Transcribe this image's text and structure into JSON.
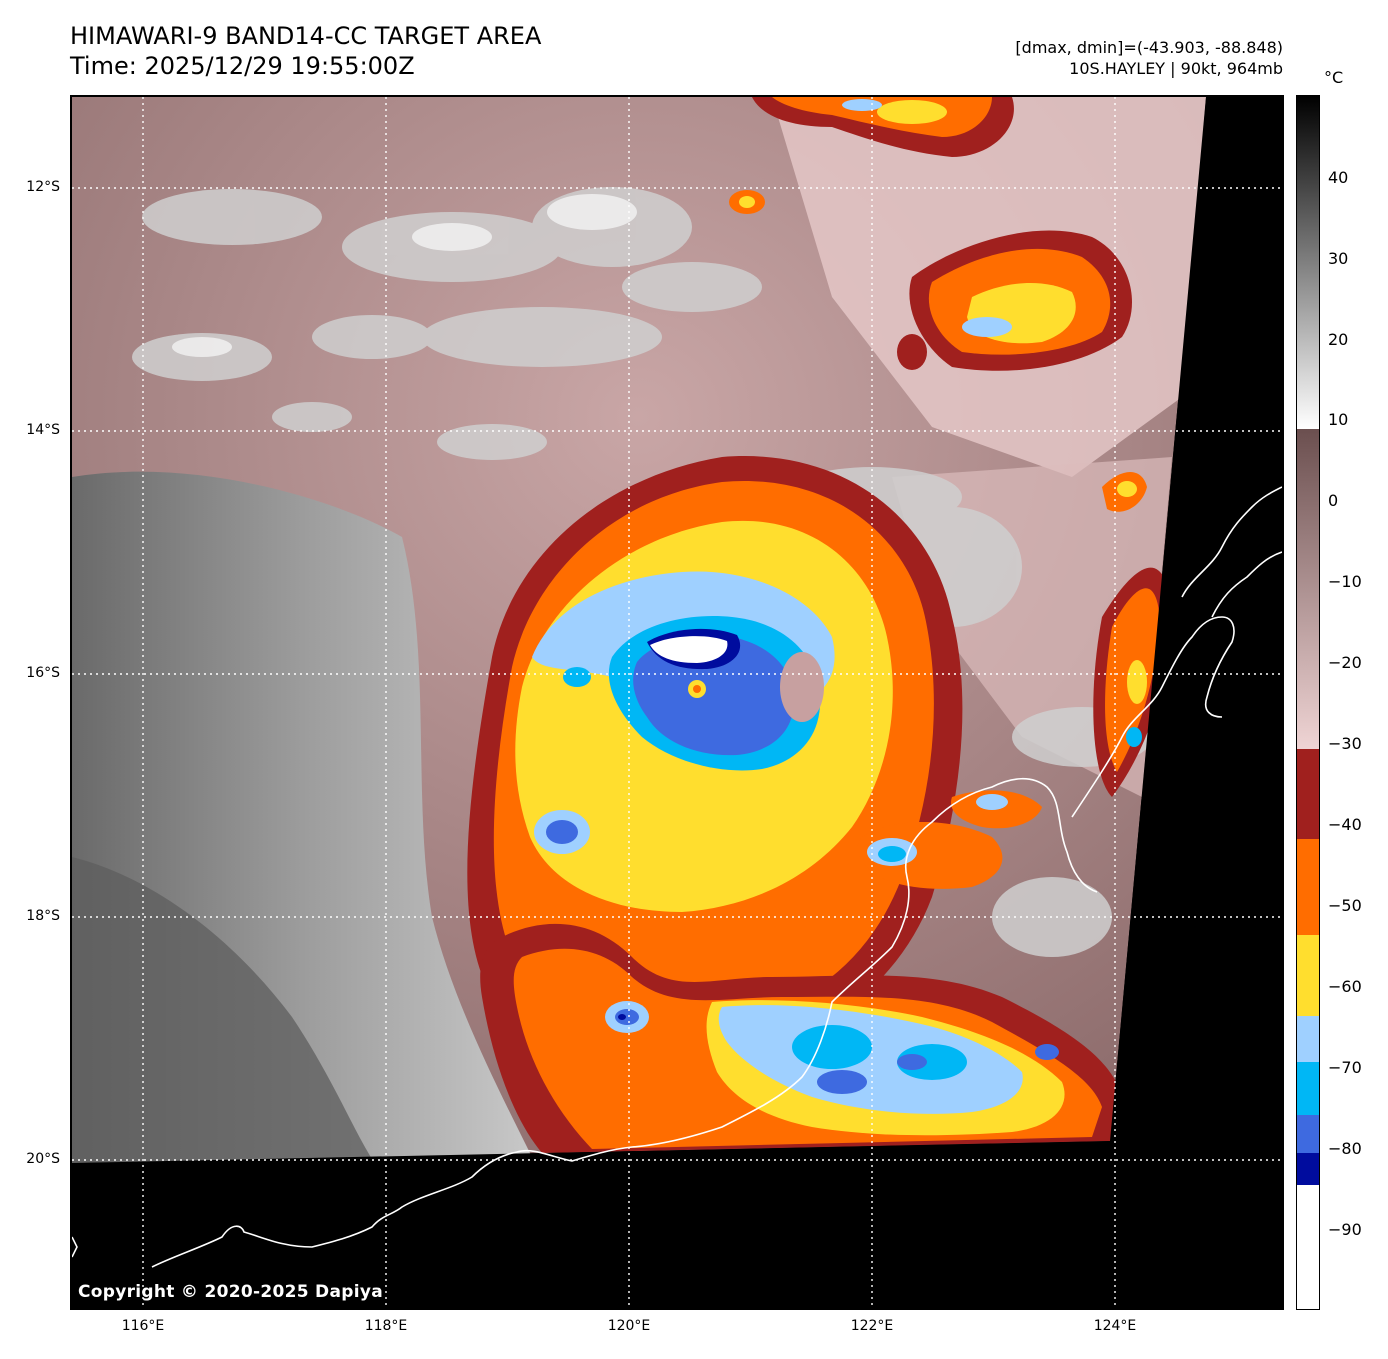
{
  "header": {
    "title_line1": "HIMAWARI-9 BAND14-CC TARGET AREA",
    "title_line2": "Time: 2025/12/29 19:55:00Z",
    "info_line1": "[dmax, dmin]=(-43.903, -88.848)",
    "info_line2": "10S.HAYLEY | 90kt, 964mb"
  },
  "axes": {
    "lat_labels": [
      "12°S",
      "14°S",
      "16°S",
      "18°S",
      "20°S"
    ],
    "lon_labels": [
      "116°E",
      "118°E",
      "120°E",
      "122°E",
      "124°E"
    ]
  },
  "colorbar": {
    "unit": "°C",
    "ticks": [
      "40",
      "30",
      "20",
      "10",
      "0",
      "−10",
      "−20",
      "−30",
      "−40",
      "−50",
      "−60",
      "−70",
      "−80",
      "−90"
    ],
    "colors": {
      "gray_top": "#000000",
      "gray_bottom": "#ffffff",
      "pink_top": "#6b4f4f",
      "pink_bottom": "#efd4d4",
      "dark_red": "#a0201e",
      "orange": "#ff6d00",
      "yellow": "#ffde2e",
      "light_blue": "#9fd0ff",
      "cyan": "#00b7f5",
      "royal_blue": "#3e6ae0",
      "navy": "#000c9e",
      "white": "#ffffff"
    }
  },
  "footer": {
    "copyright": "Copyright © 2020-2025 Dapiya"
  }
}
